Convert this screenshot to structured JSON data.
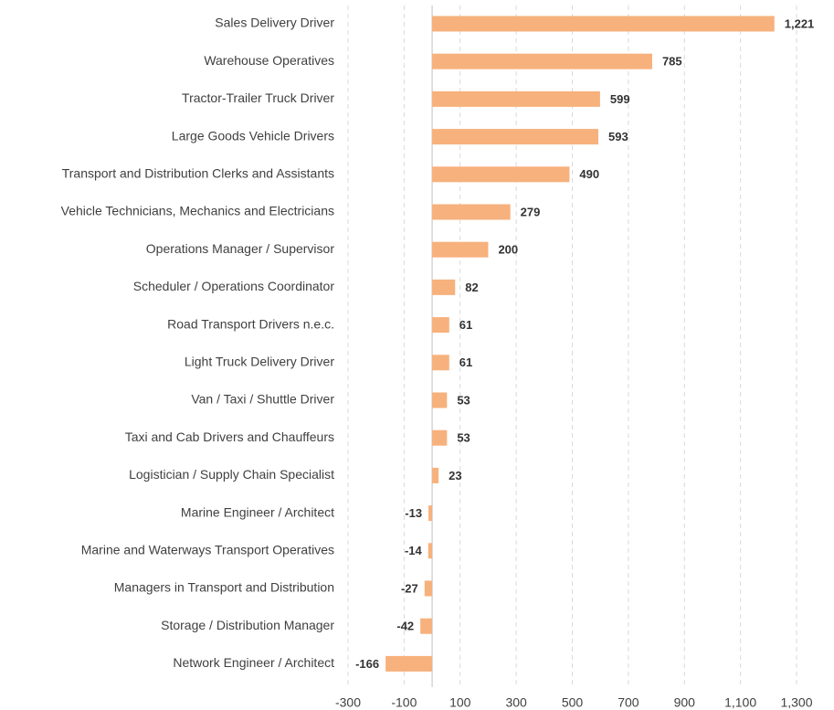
{
  "chart_data": {
    "type": "barh",
    "categories": [
      "Sales Delivery Driver",
      "Warehouse Operatives",
      "Tractor-Trailer Truck Driver",
      "Large Goods Vehicle Drivers",
      "Transport and Distribution Clerks and Assistants",
      "Vehicle Technicians, Mechanics and Electricians",
      "Operations Manager / Supervisor",
      "Scheduler / Operations Coordinator",
      "Road Transport Drivers n.e.c.",
      "Light Truck Delivery Driver",
      "Van / Taxi / Shuttle Driver",
      "Taxi and Cab Drivers and Chauffeurs",
      "Logistician / Supply Chain Specialist",
      "Marine Engineer / Architect",
      "Marine and Waterways Transport Operatives",
      "Managers in Transport and Distribution",
      "Storage / Distribution Manager",
      "Network Engineer / Architect"
    ],
    "values": [
      1221,
      785,
      599,
      593,
      490,
      279,
      200,
      82,
      61,
      61,
      53,
      53,
      23,
      -13,
      -14,
      -27,
      -42,
      -166
    ],
    "value_labels": [
      "1,221",
      "785",
      "599",
      "593",
      "490",
      "279",
      "200",
      "82",
      "61",
      "61",
      "53",
      "53",
      "23",
      "-13",
      "-14",
      "-27",
      "-42",
      "-166"
    ],
    "color": "#f7b17c",
    "xlim": [
      -300,
      1300
    ],
    "xticks": [
      -300,
      -100,
      100,
      300,
      500,
      700,
      900,
      {
        "value": 1100,
        "label": "1,100"
      },
      {
        "value": 1300,
        "label": "1,300"
      }
    ],
    "grid": true
  }
}
